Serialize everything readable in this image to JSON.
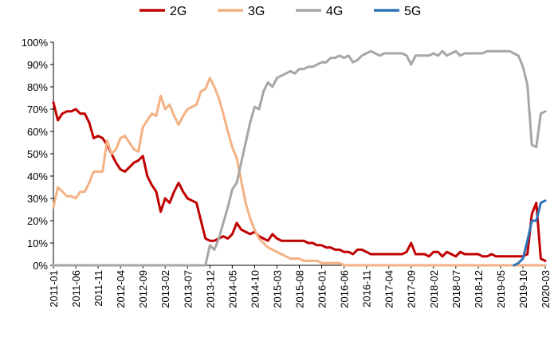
{
  "chart_data": {
    "type": "line",
    "title": "",
    "xlabel": "",
    "ylabel": "",
    "ylim": [
      0,
      100
    ],
    "y_ticks": [
      "0%",
      "10%",
      "20%",
      "30%",
      "40%",
      "50%",
      "60%",
      "70%",
      "80%",
      "90%",
      "100%"
    ],
    "x_start": "2011-01",
    "x_end": "2020-03",
    "x_tick_labels": [
      "2011-01",
      "2011-06",
      "2011-11",
      "2012-04",
      "2012-09",
      "2013-02",
      "2013-07",
      "2013-12",
      "2014-05",
      "2014-10",
      "2015-03",
      "2015-08",
      "2016-01",
      "2016-06",
      "2016-11",
      "2017-04",
      "2017-09",
      "2018-02",
      "2018-07",
      "2018-12",
      "2019-05",
      "2019-10",
      "2020-03"
    ],
    "grid": false,
    "legend_position": "top",
    "series": [
      {
        "name": "2G",
        "color": "#c00000",
        "points": [
          [
            "2011-01",
            73
          ],
          [
            "2011-02",
            65
          ],
          [
            "2011-03",
            68
          ],
          [
            "2011-04",
            69
          ],
          [
            "2011-05",
            69
          ],
          [
            "2011-06",
            70
          ],
          [
            "2011-07",
            68
          ],
          [
            "2011-08",
            68
          ],
          [
            "2011-09",
            64
          ],
          [
            "2011-10",
            57
          ],
          [
            "2011-11",
            58
          ],
          [
            "2011-12",
            57
          ],
          [
            "2012-01",
            54
          ],
          [
            "2012-02",
            50
          ],
          [
            "2012-03",
            46
          ],
          [
            "2012-04",
            43
          ],
          [
            "2012-05",
            42
          ],
          [
            "2012-06",
            44
          ],
          [
            "2012-07",
            46
          ],
          [
            "2012-08",
            47
          ],
          [
            "2012-09",
            49
          ],
          [
            "2012-10",
            40
          ],
          [
            "2012-11",
            36
          ],
          [
            "2012-12",
            33
          ],
          [
            "2013-01",
            24
          ],
          [
            "2013-02",
            30
          ],
          [
            "2013-03",
            28
          ],
          [
            "2013-04",
            33
          ],
          [
            "2013-05",
            37
          ],
          [
            "2013-06",
            33
          ],
          [
            "2013-07",
            30
          ],
          [
            "2013-08",
            29
          ],
          [
            "2013-09",
            28
          ],
          [
            "2013-10",
            20
          ],
          [
            "2013-11",
            12
          ],
          [
            "2013-12",
            11
          ],
          [
            "2014-01",
            11
          ],
          [
            "2014-02",
            12
          ],
          [
            "2014-03",
            13
          ],
          [
            "2014-04",
            12
          ],
          [
            "2014-05",
            14
          ],
          [
            "2014-06",
            19
          ],
          [
            "2014-07",
            16
          ],
          [
            "2014-08",
            15
          ],
          [
            "2014-09",
            14
          ],
          [
            "2014-10",
            15
          ],
          [
            "2014-11",
            13
          ],
          [
            "2014-12",
            12
          ],
          [
            "2015-01",
            11
          ],
          [
            "2015-02",
            14
          ],
          [
            "2015-03",
            12
          ],
          [
            "2015-04",
            11
          ],
          [
            "2015-05",
            11
          ],
          [
            "2015-06",
            11
          ],
          [
            "2015-07",
            11
          ],
          [
            "2015-08",
            11
          ],
          [
            "2015-09",
            11
          ],
          [
            "2015-10",
            10
          ],
          [
            "2015-11",
            10
          ],
          [
            "2015-12",
            9
          ],
          [
            "2016-01",
            9
          ],
          [
            "2016-02",
            8
          ],
          [
            "2016-03",
            8
          ],
          [
            "2016-04",
            7
          ],
          [
            "2016-05",
            7
          ],
          [
            "2016-06",
            6
          ],
          [
            "2016-07",
            6
          ],
          [
            "2016-08",
            5
          ],
          [
            "2016-09",
            7
          ],
          [
            "2016-10",
            7
          ],
          [
            "2016-11",
            6
          ],
          [
            "2016-12",
            5
          ],
          [
            "2017-01",
            5
          ],
          [
            "2017-02",
            5
          ],
          [
            "2017-03",
            5
          ],
          [
            "2017-04",
            5
          ],
          [
            "2017-05",
            5
          ],
          [
            "2017-06",
            5
          ],
          [
            "2017-07",
            5
          ],
          [
            "2017-08",
            6
          ],
          [
            "2017-09",
            10
          ],
          [
            "2017-10",
            5
          ],
          [
            "2017-11",
            5
          ],
          [
            "2017-12",
            5
          ],
          [
            "2018-01",
            4
          ],
          [
            "2018-02",
            6
          ],
          [
            "2018-03",
            6
          ],
          [
            "2018-04",
            4
          ],
          [
            "2018-05",
            6
          ],
          [
            "2018-06",
            5
          ],
          [
            "2018-07",
            4
          ],
          [
            "2018-08",
            6
          ],
          [
            "2018-09",
            5
          ],
          [
            "2018-10",
            5
          ],
          [
            "2018-11",
            5
          ],
          [
            "2018-12",
            5
          ],
          [
            "2019-01",
            4
          ],
          [
            "2019-02",
            4
          ],
          [
            "2019-03",
            5
          ],
          [
            "2019-04",
            4
          ],
          [
            "2019-05",
            4
          ],
          [
            "2019-06",
            4
          ],
          [
            "2019-07",
            4
          ],
          [
            "2019-08",
            4
          ],
          [
            "2019-09",
            4
          ],
          [
            "2019-10",
            4
          ],
          [
            "2019-11",
            5
          ],
          [
            "2019-12",
            23
          ],
          [
            "2020-01",
            28
          ],
          [
            "2020-02",
            3
          ],
          [
            "2020-03",
            2
          ]
        ]
      },
      {
        "name": "3G",
        "color": "#f4b183",
        "points": [
          [
            "2011-01",
            26
          ],
          [
            "2011-02",
            35
          ],
          [
            "2011-03",
            33
          ],
          [
            "2011-04",
            31
          ],
          [
            "2011-05",
            31
          ],
          [
            "2011-06",
            30
          ],
          [
            "2011-07",
            33
          ],
          [
            "2011-08",
            33
          ],
          [
            "2011-09",
            37
          ],
          [
            "2011-10",
            42
          ],
          [
            "2011-11",
            42
          ],
          [
            "2011-12",
            42
          ],
          [
            "2012-01",
            56
          ],
          [
            "2012-02",
            50
          ],
          [
            "2012-03",
            52
          ],
          [
            "2012-04",
            57
          ],
          [
            "2012-05",
            58
          ],
          [
            "2012-06",
            55
          ],
          [
            "2012-07",
            52
          ],
          [
            "2012-08",
            51
          ],
          [
            "2012-09",
            62
          ],
          [
            "2012-10",
            65
          ],
          [
            "2012-11",
            68
          ],
          [
            "2012-12",
            67
          ],
          [
            "2013-01",
            76
          ],
          [
            "2013-02",
            70
          ],
          [
            "2013-03",
            72
          ],
          [
            "2013-04",
            67
          ],
          [
            "2013-05",
            63
          ],
          [
            "2013-06",
            67
          ],
          [
            "2013-07",
            70
          ],
          [
            "2013-08",
            71
          ],
          [
            "2013-09",
            72
          ],
          [
            "2013-10",
            78
          ],
          [
            "2013-11",
            79
          ],
          [
            "2013-12",
            84
          ],
          [
            "2014-01",
            80
          ],
          [
            "2014-02",
            75
          ],
          [
            "2014-03",
            68
          ],
          [
            "2014-04",
            60
          ],
          [
            "2014-05",
            53
          ],
          [
            "2014-06",
            48
          ],
          [
            "2014-07",
            38
          ],
          [
            "2014-08",
            28
          ],
          [
            "2014-09",
            21
          ],
          [
            "2014-10",
            16
          ],
          [
            "2014-11",
            12
          ],
          [
            "2014-12",
            10
          ],
          [
            "2015-01",
            8
          ],
          [
            "2015-02",
            7
          ],
          [
            "2015-03",
            6
          ],
          [
            "2015-04",
            5
          ],
          [
            "2015-05",
            4
          ],
          [
            "2015-06",
            3
          ],
          [
            "2015-07",
            3
          ],
          [
            "2015-08",
            3
          ],
          [
            "2015-09",
            2
          ],
          [
            "2015-10",
            2
          ],
          [
            "2015-11",
            2
          ],
          [
            "2015-12",
            2
          ],
          [
            "2016-01",
            1
          ],
          [
            "2016-02",
            1
          ],
          [
            "2016-03",
            1
          ],
          [
            "2016-04",
            1
          ],
          [
            "2016-05",
            1
          ],
          [
            "2016-06",
            0
          ],
          [
            "2016-07",
            0
          ],
          [
            "2016-08",
            0
          ],
          [
            "2016-09",
            0
          ],
          [
            "2016-10",
            0
          ],
          [
            "2016-11",
            0
          ],
          [
            "2016-12",
            0
          ],
          [
            "2017-06",
            0
          ],
          [
            "2018-01",
            0
          ],
          [
            "2018-07",
            0
          ],
          [
            "2019-01",
            0
          ],
          [
            "2019-07",
            0
          ],
          [
            "2020-03",
            0
          ]
        ]
      },
      {
        "name": "4G",
        "color": "#a6a6a6",
        "points": [
          [
            "2011-01",
            0
          ],
          [
            "2013-11",
            0
          ],
          [
            "2013-12",
            9
          ],
          [
            "2014-01",
            7
          ],
          [
            "2014-02",
            12
          ],
          [
            "2014-03",
            19
          ],
          [
            "2014-04",
            26
          ],
          [
            "2014-05",
            34
          ],
          [
            "2014-06",
            37
          ],
          [
            "2014-07",
            46
          ],
          [
            "2014-08",
            55
          ],
          [
            "2014-09",
            64
          ],
          [
            "2014-10",
            71
          ],
          [
            "2014-11",
            70
          ],
          [
            "2014-12",
            78
          ],
          [
            "2015-01",
            82
          ],
          [
            "2015-02",
            80
          ],
          [
            "2015-03",
            84
          ],
          [
            "2015-04",
            85
          ],
          [
            "2015-05",
            86
          ],
          [
            "2015-06",
            87
          ],
          [
            "2015-07",
            86
          ],
          [
            "2015-08",
            88
          ],
          [
            "2015-09",
            88
          ],
          [
            "2015-10",
            89
          ],
          [
            "2015-11",
            89
          ],
          [
            "2015-12",
            90
          ],
          [
            "2016-01",
            91
          ],
          [
            "2016-02",
            91
          ],
          [
            "2016-03",
            93
          ],
          [
            "2016-04",
            93
          ],
          [
            "2016-05",
            94
          ],
          [
            "2016-06",
            93
          ],
          [
            "2016-07",
            94
          ],
          [
            "2016-08",
            91
          ],
          [
            "2016-09",
            92
          ],
          [
            "2016-10",
            94
          ],
          [
            "2016-11",
            95
          ],
          [
            "2016-12",
            96
          ],
          [
            "2017-01",
            95
          ],
          [
            "2017-02",
            94
          ],
          [
            "2017-03",
            95
          ],
          [
            "2017-04",
            95
          ],
          [
            "2017-05",
            95
          ],
          [
            "2017-06",
            95
          ],
          [
            "2017-07",
            95
          ],
          [
            "2017-08",
            94
          ],
          [
            "2017-09",
            90
          ],
          [
            "2017-10",
            94
          ],
          [
            "2017-11",
            94
          ],
          [
            "2017-12",
            94
          ],
          [
            "2018-01",
            94
          ],
          [
            "2018-02",
            95
          ],
          [
            "2018-03",
            94
          ],
          [
            "2018-04",
            96
          ],
          [
            "2018-05",
            94
          ],
          [
            "2018-06",
            95
          ],
          [
            "2018-07",
            96
          ],
          [
            "2018-08",
            94
          ],
          [
            "2018-09",
            95
          ],
          [
            "2018-10",
            95
          ],
          [
            "2018-11",
            95
          ],
          [
            "2018-12",
            95
          ],
          [
            "2019-01",
            95
          ],
          [
            "2019-02",
            96
          ],
          [
            "2019-03",
            96
          ],
          [
            "2019-04",
            96
          ],
          [
            "2019-05",
            96
          ],
          [
            "2019-06",
            96
          ],
          [
            "2019-07",
            96
          ],
          [
            "2019-08",
            95
          ],
          [
            "2019-09",
            94
          ],
          [
            "2019-10",
            89
          ],
          [
            "2019-11",
            81
          ],
          [
            "2019-12",
            54
          ],
          [
            "2020-01",
            53
          ],
          [
            "2020-02",
            68
          ],
          [
            "2020-03",
            69
          ]
        ]
      },
      {
        "name": "5G",
        "color": "#2e75b6",
        "points": [
          [
            "2019-08",
            0
          ],
          [
            "2019-09",
            1
          ],
          [
            "2019-10",
            3
          ],
          [
            "2019-11",
            11
          ],
          [
            "2019-12",
            20
          ],
          [
            "2020-01",
            20
          ],
          [
            "2020-02",
            28
          ],
          [
            "2020-03",
            29
          ]
        ]
      }
    ]
  }
}
